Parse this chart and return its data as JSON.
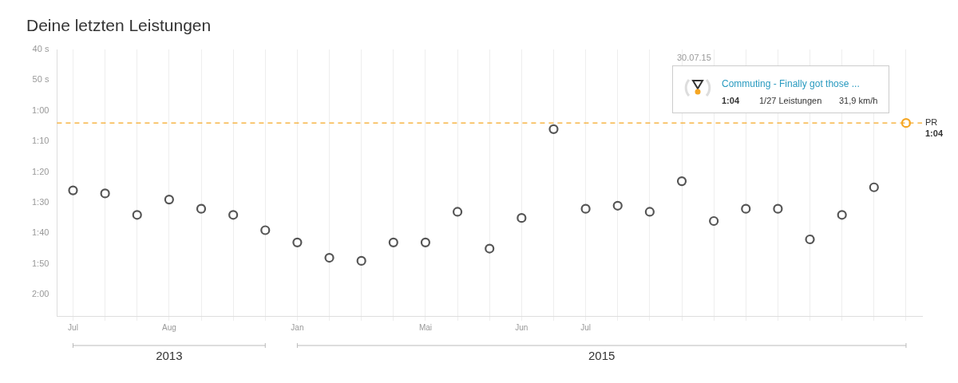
{
  "chart_data": {
    "type": "scatter",
    "title": "Deine letzten Leistungen",
    "categories": [
      "Jul",
      null,
      null,
      "Aug",
      null,
      null,
      null,
      "Jan",
      null,
      null,
      null,
      "Mai",
      null,
      null,
      "Jun",
      null,
      "Jul",
      null,
      null,
      null,
      null,
      null,
      null,
      null,
      null,
      null,
      null
    ],
    "series": [
      {
        "colors": [
          "#555555",
          "#555555",
          "#555555",
          "#555555",
          "#555555",
          "#555555",
          "#555555",
          "#555555",
          "#555555",
          "#555555",
          "#555555",
          "#555555",
          "#555555",
          "#555555",
          "#555555",
          "#555555",
          "#555555",
          "#555555",
          "#555555",
          "#555555",
          "#555555",
          "#555555",
          "#555555",
          "#555555",
          "#555555",
          "#555555",
          "#f5a623"
        ],
        "values": [
          86,
          87,
          94,
          89,
          92,
          94,
          99,
          103,
          108,
          109,
          103,
          103,
          93,
          105,
          95,
          66,
          92,
          91,
          93,
          83,
          96,
          92,
          92,
          102,
          94,
          85,
          64
        ]
      }
    ],
    "ylim": [
      127,
      40
    ],
    "yticks": [
      {
        "value": 40,
        "label": "40 s"
      },
      {
        "value": 50,
        "label": "50 s"
      },
      {
        "value": 60,
        "label": "1:00"
      },
      {
        "value": 70,
        "label": "1:10"
      },
      {
        "value": 80,
        "label": "1:20"
      },
      {
        "value": 90,
        "label": "1:30"
      },
      {
        "value": 100,
        "label": "1:40"
      },
      {
        "value": 110,
        "label": "1:50"
      },
      {
        "value": 120,
        "label": "2:00"
      }
    ],
    "grid": "x",
    "legend": false,
    "marker": "circle",
    "ref_lines": [
      {
        "axis": "y",
        "value": 64,
        "label": "PR",
        "color": "#f5a623",
        "line_style": "dashed"
      }
    ],
    "annotations": [
      "2013",
      "2015",
      "1:04",
      "30.07.15",
      "Commuting - Finally got those ...",
      "1:04",
      "1/27 Leistungen",
      "31,9 km/h"
    ]
  }
}
